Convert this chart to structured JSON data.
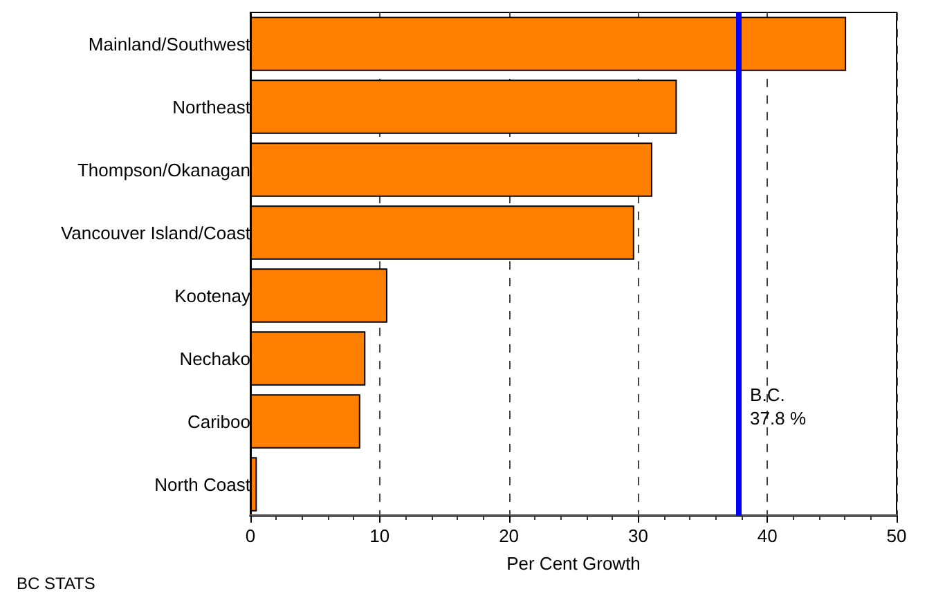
{
  "chart_data": {
    "type": "bar",
    "orientation": "horizontal",
    "categories": [
      "Mainland/Southwest",
      "Northeast",
      "Thompson/Okanagan",
      "Vancouver Island/Coast",
      "Kootenay",
      "Nechako",
      "Cariboo",
      "North Coast"
    ],
    "values": [
      46.1,
      33.0,
      31.1,
      29.7,
      10.6,
      8.9,
      8.5,
      0.5
    ],
    "color": "#ff8000",
    "xlim": [
      0,
      50
    ],
    "xticks": [
      0,
      10,
      20,
      30,
      40,
      50
    ],
    "xlabel": "Per Cent Growth",
    "grid": "x",
    "ref_lines": [
      {
        "axis": "x",
        "value": 37.8,
        "label": "B.C.\n37.8 %",
        "color": "#0000ff"
      }
    ],
    "annotations": [
      "BC STATS"
    ]
  }
}
